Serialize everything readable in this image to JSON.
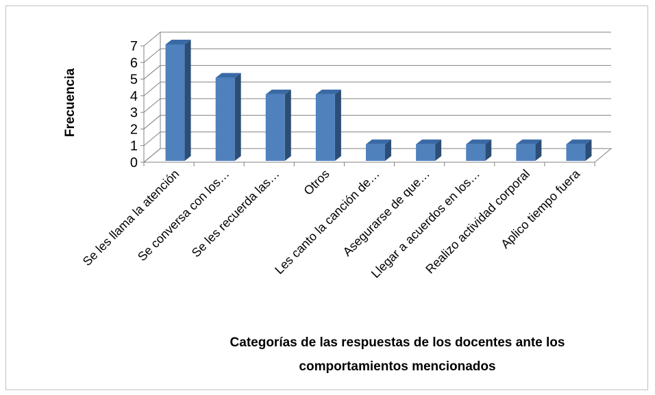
{
  "chart_data": {
    "type": "bar",
    "style": "3d-column",
    "categories": [
      "Se les llama la atención",
      "Se conversa con los…",
      "Se les recuerda las…",
      "Otros",
      "Les canto la canción de…",
      "Asegurarse de que…",
      "Llegar a acuerdos en los…",
      "Realizo actividad corporal",
      "Aplico tiempo fuera"
    ],
    "values": [
      7,
      5,
      4,
      4,
      1,
      1,
      1,
      1,
      1
    ],
    "yticks": [
      "0",
      "1",
      "2",
      "3",
      "4",
      "5",
      "6",
      "7"
    ],
    "ylim": [
      0,
      7
    ],
    "ylabel": "Frecuencia",
    "xlabel_lines": [
      "Categorías de las respuestas de los docentes ante los",
      "comportamientos mencionados"
    ],
    "grid": true,
    "legend": "none",
    "colors": {
      "bar_front": "#4f81bd",
      "bar_side": "#2c4d75",
      "bar_top": "#3a6aa6",
      "grid": "#808080"
    }
  }
}
